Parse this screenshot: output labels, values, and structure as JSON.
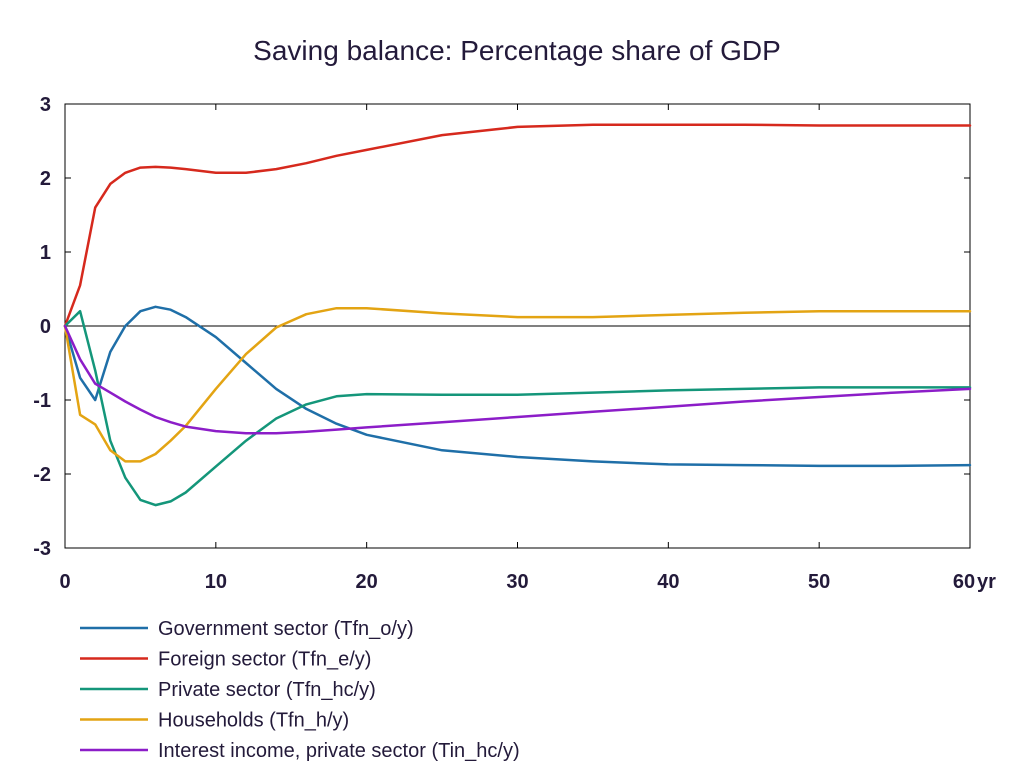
{
  "chart_data": {
    "type": "line",
    "title": "Saving balance: Percentage share of GDP",
    "xlabel": "",
    "ylabel": "",
    "x_unit_label": "yr",
    "xlim": [
      0,
      60
    ],
    "ylim": [
      -3,
      3
    ],
    "x_ticks": [
      0,
      10,
      20,
      30,
      40,
      50,
      60
    ],
    "y_ticks": [
      -3,
      -2,
      -1,
      0,
      1,
      2,
      3
    ],
    "grid": false,
    "zero_line": true,
    "legend_position": "bottom",
    "series": [
      {
        "name": "Government sector (Tfn_o/y)",
        "color": "#1f6fa8",
        "points": [
          [
            0,
            0
          ],
          [
            1,
            -0.7
          ],
          [
            2,
            -1.0
          ],
          [
            3,
            -0.35
          ],
          [
            4,
            0.0
          ],
          [
            5,
            0.2
          ],
          [
            6,
            0.26
          ],
          [
            7,
            0.22
          ],
          [
            8,
            0.12
          ],
          [
            10,
            -0.15
          ],
          [
            12,
            -0.5
          ],
          [
            14,
            -0.85
          ],
          [
            16,
            -1.12
          ],
          [
            18,
            -1.32
          ],
          [
            20,
            -1.47
          ],
          [
            25,
            -1.68
          ],
          [
            30,
            -1.77
          ],
          [
            35,
            -1.83
          ],
          [
            40,
            -1.87
          ],
          [
            45,
            -1.88
          ],
          [
            50,
            -1.89
          ],
          [
            55,
            -1.89
          ],
          [
            60,
            -1.88
          ]
        ]
      },
      {
        "name": "Foreign sector (Tfn_e/y)",
        "color": "#d6291d",
        "points": [
          [
            0,
            0
          ],
          [
            1,
            0.55
          ],
          [
            2,
            1.6
          ],
          [
            3,
            1.92
          ],
          [
            4,
            2.07
          ],
          [
            5,
            2.14
          ],
          [
            6,
            2.15
          ],
          [
            7,
            2.14
          ],
          [
            8,
            2.12
          ],
          [
            10,
            2.07
          ],
          [
            12,
            2.07
          ],
          [
            14,
            2.12
          ],
          [
            16,
            2.2
          ],
          [
            18,
            2.3
          ],
          [
            20,
            2.38
          ],
          [
            25,
            2.58
          ],
          [
            30,
            2.69
          ],
          [
            35,
            2.72
          ],
          [
            40,
            2.72
          ],
          [
            45,
            2.72
          ],
          [
            50,
            2.71
          ],
          [
            55,
            2.71
          ],
          [
            60,
            2.71
          ]
        ]
      },
      {
        "name": "Private sector (Tfn_hc/y)",
        "color": "#14967a",
        "points": [
          [
            0,
            0
          ],
          [
            1,
            0.2
          ],
          [
            2,
            -0.6
          ],
          [
            3,
            -1.55
          ],
          [
            4,
            -2.05
          ],
          [
            5,
            -2.35
          ],
          [
            6,
            -2.42
          ],
          [
            7,
            -2.37
          ],
          [
            8,
            -2.25
          ],
          [
            10,
            -1.9
          ],
          [
            12,
            -1.55
          ],
          [
            14,
            -1.25
          ],
          [
            16,
            -1.06
          ],
          [
            18,
            -0.95
          ],
          [
            20,
            -0.92
          ],
          [
            25,
            -0.93
          ],
          [
            30,
            -0.93
          ],
          [
            35,
            -0.9
          ],
          [
            40,
            -0.87
          ],
          [
            45,
            -0.85
          ],
          [
            50,
            -0.83
          ],
          [
            55,
            -0.83
          ],
          [
            60,
            -0.83
          ]
        ]
      },
      {
        "name": "Households (Tfn_h/y)",
        "color": "#e3a413",
        "points": [
          [
            0,
            0
          ],
          [
            1,
            -1.2
          ],
          [
            2,
            -1.33
          ],
          [
            3,
            -1.68
          ],
          [
            4,
            -1.83
          ],
          [
            5,
            -1.83
          ],
          [
            6,
            -1.73
          ],
          [
            7,
            -1.55
          ],
          [
            8,
            -1.35
          ],
          [
            10,
            -0.85
          ],
          [
            12,
            -0.38
          ],
          [
            14,
            -0.02
          ],
          [
            16,
            0.16
          ],
          [
            18,
            0.24
          ],
          [
            20,
            0.24
          ],
          [
            25,
            0.17
          ],
          [
            30,
            0.12
          ],
          [
            35,
            0.12
          ],
          [
            40,
            0.15
          ],
          [
            45,
            0.18
          ],
          [
            50,
            0.2
          ],
          [
            55,
            0.2
          ],
          [
            60,
            0.2
          ]
        ]
      },
      {
        "name": "Interest income, private sector (Tin_hc/y)",
        "color": "#8c1dc8",
        "points": [
          [
            0,
            0
          ],
          [
            1,
            -0.45
          ],
          [
            2,
            -0.78
          ],
          [
            3,
            -0.9
          ],
          [
            4,
            -1.02
          ],
          [
            5,
            -1.13
          ],
          [
            6,
            -1.23
          ],
          [
            7,
            -1.3
          ],
          [
            8,
            -1.36
          ],
          [
            10,
            -1.42
          ],
          [
            12,
            -1.45
          ],
          [
            14,
            -1.45
          ],
          [
            16,
            -1.43
          ],
          [
            18,
            -1.4
          ],
          [
            20,
            -1.37
          ],
          [
            25,
            -1.3
          ],
          [
            30,
            -1.23
          ],
          [
            35,
            -1.16
          ],
          [
            40,
            -1.09
          ],
          [
            45,
            -1.02
          ],
          [
            50,
            -0.96
          ],
          [
            55,
            -0.9
          ],
          [
            60,
            -0.85
          ]
        ]
      }
    ]
  }
}
